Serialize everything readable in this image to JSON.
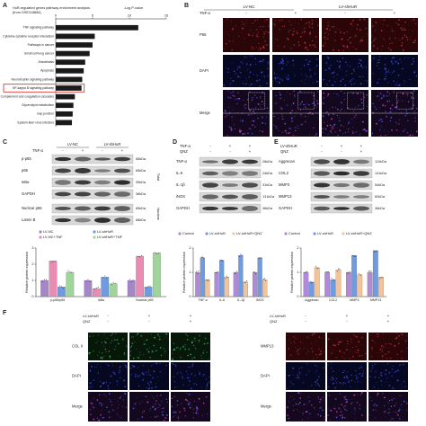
{
  "panel_labels": [
    "A",
    "B",
    "C",
    "D",
    "E",
    "F"
  ],
  "panel_a": {
    "chart_data": {
      "type": "hbar",
      "title": "HuR-regulated genes pathway enrichment analysis",
      "subtitle": "(from GSE118856)",
      "x_label": "-Log P-value",
      "categories": [
        "TNF signaling pathway",
        "Cytokine-cytokine receptor interaction",
        "Pathways in cancer",
        "Small cell lung cancer",
        "Amoebiasis",
        "Apoptosis",
        "Neurotrophin signaling pathway",
        "NF-kappa B signaling pathway",
        "Complement and coagulation cascades",
        "Glycerolipid metabolism",
        "Gap junction",
        "Epstein-Barr virus infection"
      ],
      "values": [
        11.2,
        5.3,
        5.0,
        4.6,
        4.0,
        3.8,
        3.6,
        3.5,
        2.6,
        2.4,
        2.3,
        2.2
      ],
      "xlim": [
        0,
        15
      ],
      "xticks": [
        0,
        5,
        10,
        15
      ],
      "color": "#1a1a1a",
      "highlight": 7,
      "highlight_color": "#d62728"
    }
  },
  "panel_b": {
    "groups": [
      "LV-NC",
      "LV-shHuR"
    ],
    "treatment": "TNF-α",
    "signs": [
      "-",
      "+",
      "-",
      "+"
    ],
    "rows": [
      "P65",
      "DAPI",
      "Merge"
    ]
  },
  "panel_c": {
    "groups": [
      "LV-NC",
      "LV-shHuR"
    ],
    "treatment": "TNF-α",
    "signs": [
      "-",
      "+",
      "-",
      "+"
    ],
    "rows": [
      {
        "label": "p-p65",
        "size": "65kDa"
      },
      {
        "label": "p65",
        "size": "65kDa"
      },
      {
        "label": "IκBα",
        "size": "39kDa"
      },
      {
        "label": "GAPDH",
        "size": "36kDa"
      },
      {
        "label": "Nuclear p65",
        "size": "65kDa"
      },
      {
        "label": "Lamin B",
        "size": "68kDa"
      }
    ],
    "sections": [
      "Total",
      "Nuclear"
    ],
    "chart_data": {
      "type": "bar",
      "y_label": "Relative protein expression",
      "categories": [
        "p-p65/p65",
        "IκBα",
        "Nuclear p65"
      ],
      "series": [
        {
          "name": "LV-NC",
          "color": "#a586c9",
          "values": [
            1,
            1,
            1
          ]
        },
        {
          "name": "LV-NC+TNF",
          "color": "#e98cb4",
          "values": [
            2.2,
            0.5,
            2.5
          ]
        },
        {
          "name": "LV-shHuR",
          "color": "#6f9be0",
          "values": [
            0.6,
            1.2,
            0.6
          ]
        },
        {
          "name": "LV-shHuR+TNF",
          "color": "#9fd49a",
          "values": [
            1.5,
            0.8,
            2.7
          ]
        }
      ],
      "ylim": [
        0,
        3
      ],
      "yticks": [
        0,
        1,
        2,
        3
      ],
      "legend_rows": 2
    }
  },
  "panel_d": {
    "treatments": [
      {
        "label": "TNF-α",
        "signs": [
          "-",
          "+",
          "+"
        ]
      },
      {
        "label": "QNZ",
        "signs": [
          "-",
          "-",
          "+"
        ]
      }
    ],
    "rows": [
      {
        "label": "TNF-α",
        "size": "26kDa"
      },
      {
        "label": "IL-6",
        "size": "24kDa"
      },
      {
        "label": "IL-1β",
        "size": "31kDa"
      },
      {
        "label": "iNOS",
        "size": "131kDa"
      },
      {
        "label": "GAPDH",
        "size": "36kDa"
      }
    ],
    "chart_data": {
      "type": "bar",
      "y_label": "Relative protein expression",
      "categories": [
        "TNF-α",
        "IL-6",
        "IL-1β",
        "iNOS"
      ],
      "series": [
        {
          "name": "Control",
          "color": "#b08ad6",
          "values": [
            1,
            1,
            1,
            1
          ]
        },
        {
          "name": "LV-shHuR",
          "color": "#6f9be0",
          "values": [
            1.6,
            1.5,
            1.7,
            1.6
          ]
        },
        {
          "name": "LV-shHuR+QNZ",
          "color": "#f2c49b",
          "values": [
            0.7,
            0.8,
            0.6,
            0.7
          ]
        }
      ],
      "ylim": [
        0,
        2
      ],
      "yticks": [
        0,
        1,
        2
      ],
      "legend_rows": 1
    }
  },
  "panel_e": {
    "treatments": [
      {
        "label": "LV-shHuR",
        "signs": [
          "-",
          "+",
          "+"
        ]
      },
      {
        "label": "QNZ",
        "signs": [
          "-",
          "-",
          "+"
        ]
      }
    ],
    "rows": [
      {
        "label": "Aggrecan",
        "size": "110kDa"
      },
      {
        "label": "COL2",
        "size": "141kDa"
      },
      {
        "label": "MMP3",
        "size": "54kDa"
      },
      {
        "label": "MMP13",
        "size": "60kDa"
      },
      {
        "label": "GAPDH",
        "size": "36kDa"
      }
    ],
    "chart_data": {
      "type": "bar",
      "y_label": "Relative protein expression",
      "categories": [
        "Aggrecan",
        "COL2",
        "MMP3",
        "MMP13"
      ],
      "series": [
        {
          "name": "Control",
          "color": "#b08ad6",
          "values": [
            1,
            1,
            1,
            1
          ]
        },
        {
          "name": "LV-shHuR",
          "color": "#6f9be0",
          "values": [
            0.6,
            0.7,
            1.7,
            1.9
          ]
        },
        {
          "name": "LV-shHuR+QNZ",
          "color": "#f2c49b",
          "values": [
            1.2,
            1.1,
            0.9,
            0.8
          ]
        }
      ],
      "ylim": [
        0,
        2
      ],
      "yticks": [
        0,
        1,
        2
      ],
      "legend_rows": 1
    }
  },
  "panel_f_left": {
    "treatments": [
      {
        "label": "LV-shHuR",
        "signs": [
          "-",
          "+",
          "+"
        ]
      },
      {
        "label": "QNZ",
        "signs": [
          "-",
          "-",
          "+"
        ]
      }
    ],
    "rows": [
      "COL II",
      "DAPI",
      "Merge"
    ]
  },
  "panel_f_right": {
    "treatments": [
      {
        "label": "LV-shHuR",
        "signs": [
          "-",
          "+",
          "+"
        ]
      },
      {
        "label": "QNZ",
        "signs": [
          "-",
          "-",
          "+"
        ]
      }
    ],
    "rows": [
      "MMP13",
      "DAPI",
      "Merge"
    ]
  }
}
